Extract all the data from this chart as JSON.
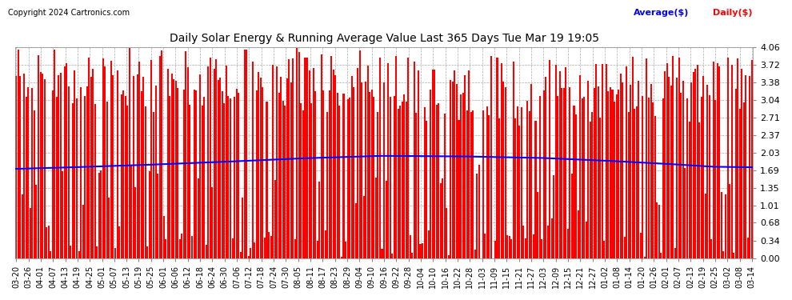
{
  "title": "Daily Solar Energy & Running Average Value Last 365 Days Tue Mar 19 19:05",
  "copyright": "Copyright 2024 Cartronics.com",
  "legend_avg": "Average($)",
  "legend_daily": "Daily($)",
  "bar_color": "#ff0000",
  "avg_color": "#0000ff",
  "background_color": "#ffffff",
  "grid_color": "#aaaaaa",
  "ylim": [
    0.0,
    4.06
  ],
  "yticks": [
    0.0,
    0.34,
    0.68,
    1.01,
    1.35,
    1.69,
    2.03,
    2.37,
    2.71,
    3.04,
    3.38,
    3.72,
    4.06
  ],
  "x_labels": [
    "03-20",
    "03-26",
    "04-01",
    "04-07",
    "04-13",
    "04-19",
    "04-25",
    "05-01",
    "05-07",
    "05-13",
    "05-19",
    "05-25",
    "06-01",
    "06-06",
    "06-12",
    "06-18",
    "06-24",
    "06-30",
    "07-06",
    "07-12",
    "07-18",
    "07-24",
    "07-30",
    "08-05",
    "08-11",
    "08-17",
    "08-23",
    "08-29",
    "09-04",
    "09-10",
    "09-16",
    "09-22",
    "09-28",
    "10-04",
    "10-10",
    "10-16",
    "10-22",
    "10-28",
    "11-03",
    "11-09",
    "11-15",
    "11-21",
    "11-27",
    "12-03",
    "12-09",
    "12-15",
    "12-21",
    "12-27",
    "01-02",
    "01-08",
    "01-14",
    "01-20",
    "01-26",
    "02-01",
    "02-07",
    "02-13",
    "02-19",
    "02-25",
    "03-02",
    "03-08",
    "03-14"
  ],
  "avg_control_x": [
    0,
    20,
    60,
    100,
    140,
    180,
    220,
    260,
    290,
    320,
    345,
    364
  ],
  "avg_control_y": [
    1.72,
    1.74,
    1.79,
    1.85,
    1.92,
    1.97,
    1.96,
    1.93,
    1.88,
    1.82,
    1.76,
    1.75
  ]
}
